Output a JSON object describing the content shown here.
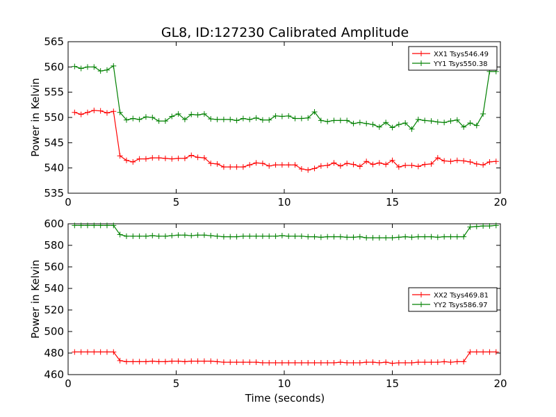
{
  "figure": {
    "title": "GL8, ID:127230 Calibrated Amplitude",
    "xlabel": "Time (seconds)"
  },
  "chart_data": [
    {
      "type": "line",
      "title": "GL8, ID:127230 Calibrated Amplitude",
      "xlabel": "",
      "ylabel": "Power in Kelvin",
      "xlim": [
        0,
        20
      ],
      "ylim": [
        535,
        565
      ],
      "xticks": [
        0,
        5,
        10,
        15,
        20
      ],
      "yticks": [
        535,
        540,
        545,
        550,
        555,
        560,
        565
      ],
      "legend": {
        "placement": "top-right"
      },
      "grid": false,
      "x": [
        0.3,
        0.6,
        0.9,
        1.2,
        1.5,
        1.8,
        2.1,
        2.4,
        2.7,
        3.0,
        3.3,
        3.6,
        3.9,
        4.2,
        4.5,
        4.8,
        5.1,
        5.4,
        5.7,
        6.0,
        6.3,
        6.6,
        6.9,
        7.2,
        7.5,
        7.8,
        8.1,
        8.4,
        8.7,
        9.0,
        9.3,
        9.6,
        9.9,
        10.2,
        10.5,
        10.8,
        11.1,
        11.4,
        11.7,
        12.0,
        12.3,
        12.6,
        12.9,
        13.2,
        13.5,
        13.8,
        14.1,
        14.4,
        14.7,
        15.0,
        15.3,
        15.6,
        15.9,
        16.2,
        16.5,
        16.8,
        17.1,
        17.4,
        17.7,
        18.0,
        18.3,
        18.6,
        18.9,
        19.2,
        19.5,
        19.8
      ],
      "series": [
        {
          "name": "XX1 Tsys546.49",
          "color": "#ff0000",
          "values": [
            551.0,
            550.6,
            551.0,
            551.4,
            551.3,
            550.9,
            551.2,
            542.4,
            541.5,
            541.2,
            541.8,
            541.8,
            542.0,
            542.0,
            541.9,
            541.8,
            541.9,
            541.9,
            542.5,
            542.1,
            542.0,
            540.9,
            540.8,
            540.2,
            540.2,
            540.2,
            540.2,
            540.6,
            541.0,
            540.9,
            540.4,
            540.6,
            540.6,
            540.6,
            540.6,
            539.8,
            539.6,
            539.9,
            540.4,
            540.5,
            541.0,
            540.4,
            540.9,
            540.7,
            540.3,
            541.3,
            540.7,
            541.0,
            540.7,
            541.5,
            540.2,
            540.5,
            540.5,
            540.3,
            540.7,
            540.8,
            542.0,
            541.4,
            541.3,
            541.5,
            541.4,
            541.2,
            540.8,
            540.6,
            541.2,
            541.3
          ]
        },
        {
          "name": "YY1 Tsys550.38",
          "color": "#008000",
          "values": [
            560.1,
            559.7,
            560.0,
            560.0,
            559.2,
            559.4,
            560.2,
            551.0,
            549.5,
            549.8,
            549.6,
            550.1,
            550.0,
            549.3,
            549.3,
            550.2,
            550.7,
            549.6,
            550.6,
            550.5,
            550.7,
            549.7,
            549.6,
            549.6,
            549.6,
            549.4,
            549.8,
            549.6,
            549.9,
            549.5,
            549.5,
            550.3,
            550.2,
            550.3,
            549.8,
            549.8,
            549.9,
            551.1,
            549.4,
            549.2,
            549.4,
            549.4,
            549.4,
            548.8,
            549.0,
            548.8,
            548.6,
            548.1,
            549.0,
            548.0,
            548.6,
            548.9,
            547.7,
            549.6,
            549.4,
            549.3,
            549.1,
            549.0,
            549.3,
            549.5,
            548.1,
            548.9,
            548.4,
            550.7,
            559.1,
            559.1
          ]
        }
      ]
    },
    {
      "type": "line",
      "title": "",
      "xlabel": "Time (seconds)",
      "ylabel": "Power in Kelvin",
      "xlim": [
        0,
        20
      ],
      "ylim": [
        460,
        600
      ],
      "xticks": [
        0,
        5,
        10,
        15,
        20
      ],
      "yticks": [
        460,
        480,
        500,
        520,
        540,
        560,
        580,
        600
      ],
      "legend": {
        "placement": "center-right"
      },
      "grid": false,
      "x": [
        0.3,
        0.6,
        0.9,
        1.2,
        1.5,
        1.8,
        2.1,
        2.4,
        2.7,
        3.0,
        3.3,
        3.6,
        3.9,
        4.2,
        4.5,
        4.8,
        5.1,
        5.4,
        5.7,
        6.0,
        6.3,
        6.6,
        6.9,
        7.2,
        7.5,
        7.8,
        8.1,
        8.4,
        8.7,
        9.0,
        9.3,
        9.6,
        9.9,
        10.2,
        10.5,
        10.8,
        11.1,
        11.4,
        11.7,
        12.0,
        12.3,
        12.6,
        12.9,
        13.2,
        13.5,
        13.8,
        14.1,
        14.4,
        14.7,
        15.0,
        15.3,
        15.6,
        15.9,
        16.2,
        16.5,
        16.8,
        17.1,
        17.4,
        17.7,
        18.0,
        18.3,
        18.6,
        18.9,
        19.2,
        19.5,
        19.8
      ],
      "series": [
        {
          "name": "XX2 Tsys469.81",
          "color": "#ff0000",
          "values": [
            481.0,
            481.0,
            481.0,
            481.0,
            481.0,
            481.0,
            481.0,
            473.0,
            472.0,
            472.0,
            472.0,
            472.0,
            472.5,
            472.0,
            472.0,
            472.5,
            472.5,
            472.0,
            472.5,
            472.5,
            472.5,
            472.5,
            472.0,
            471.5,
            471.5,
            471.5,
            471.5,
            471.5,
            471.5,
            471.0,
            471.0,
            471.0,
            471.0,
            471.0,
            471.0,
            471.0,
            471.0,
            471.0,
            471.0,
            471.0,
            471.0,
            471.5,
            471.0,
            471.0,
            471.0,
            471.5,
            471.5,
            471.0,
            471.5,
            470.5,
            471.0,
            471.0,
            471.0,
            471.5,
            471.5,
            471.5,
            471.5,
            472.0,
            471.5,
            472.0,
            472.0,
            481.0,
            481.0,
            481.0,
            481.0,
            481.0
          ]
        },
        {
          "name": "YY2 Tsys586.97",
          "color": "#008000",
          "values": [
            598.5,
            598.5,
            598.5,
            598.5,
            598.5,
            598.5,
            598.5,
            590.0,
            588.5,
            588.5,
            588.5,
            588.5,
            589.0,
            588.5,
            588.5,
            589.0,
            589.5,
            589.5,
            589.0,
            589.5,
            589.5,
            589.0,
            588.5,
            588.0,
            588.0,
            588.0,
            588.5,
            588.5,
            588.5,
            588.5,
            588.5,
            588.5,
            589.0,
            588.5,
            588.5,
            588.5,
            588.0,
            588.0,
            587.5,
            588.0,
            588.0,
            588.0,
            587.5,
            587.5,
            588.0,
            587.0,
            587.0,
            587.0,
            587.0,
            587.0,
            587.5,
            588.0,
            587.5,
            588.0,
            588.0,
            588.0,
            587.5,
            588.0,
            588.0,
            588.0,
            588.0,
            597.0,
            597.5,
            598.0,
            598.0,
            598.5
          ]
        }
      ]
    }
  ]
}
